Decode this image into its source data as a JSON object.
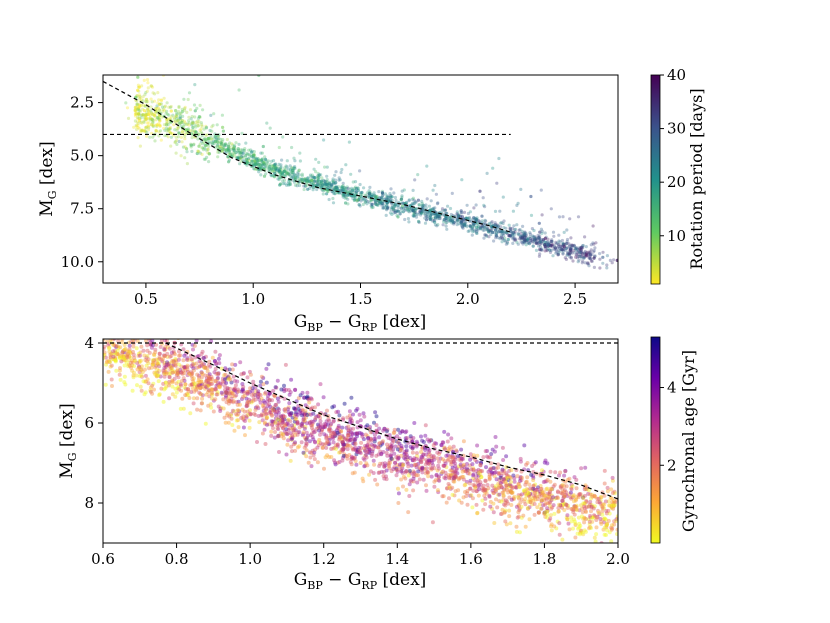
{
  "figure": {
    "description_panels": 2
  },
  "chart_data": [
    {
      "type": "scatter",
      "panel": "top",
      "xlabel": "G_BP − G_RP [dex]",
      "ylabel": "M_G [dex]",
      "xlim": [
        0.3,
        2.7
      ],
      "ylim": [
        11.0,
        1.2
      ],
      "y_inverted": true,
      "xticks": [
        0.5,
        1.0,
        1.5,
        2.0,
        2.5
      ],
      "xtick_labels": [
        "0.5",
        "1.0",
        "1.5",
        "2.0",
        "2.5"
      ],
      "yticks": [
        2.5,
        5.0,
        7.5,
        10.0
      ],
      "ytick_labels": [
        "2.5",
        "5.0",
        "7.5",
        "10.0"
      ],
      "colorbar": {
        "label": "Rotation period [days]",
        "range": [
          1,
          40
        ],
        "ticks": [
          10,
          20,
          30,
          40
        ],
        "tick_labels": [
          "10",
          "20",
          "30",
          "40"
        ],
        "colormap": "viridis_r",
        "colors": [
          "#fde725",
          "#5ec962",
          "#21918c",
          "#3b528b",
          "#440154"
        ]
      },
      "hline": {
        "y": 4.0,
        "x_range": [
          0.3,
          2.2
        ],
        "style": "dashed"
      },
      "reference_curve": {
        "style": "dashed",
        "x": [
          0.3,
          0.5,
          0.7,
          0.9,
          1.1,
          1.3,
          1.5,
          1.7,
          1.9,
          2.1,
          2.2
        ],
        "y": [
          1.5,
          2.6,
          3.9,
          5.1,
          5.9,
          6.5,
          6.9,
          7.3,
          7.8,
          8.3,
          8.6
        ]
      },
      "main_sequence_trend": {
        "x": [
          0.5,
          0.7,
          0.9,
          1.1,
          1.3,
          1.5,
          1.7,
          1.9,
          2.1,
          2.3,
          2.5,
          2.65
        ],
        "y": [
          3.0,
          3.8,
          4.8,
          5.7,
          6.3,
          6.9,
          7.4,
          7.9,
          8.4,
          9.0,
          9.5,
          9.9
        ],
        "period_days": [
          3,
          9,
          14,
          17,
          19,
          21,
          23,
          25,
          27,
          29,
          31,
          33
        ]
      }
    },
    {
      "type": "scatter",
      "panel": "bottom",
      "xlabel": "G_BP − G_RP [dex]",
      "ylabel": "M_G [dex]",
      "xlim": [
        0.6,
        2.0
      ],
      "ylim": [
        9.0,
        3.9
      ],
      "y_inverted": true,
      "xticks": [
        0.6,
        0.8,
        1.0,
        1.2,
        1.4,
        1.6,
        1.8,
        2.0
      ],
      "xtick_labels": [
        "0.6",
        "0.8",
        "1.0",
        "1.2",
        "1.4",
        "1.6",
        "1.8",
        "2.0"
      ],
      "yticks": [
        4,
        6,
        8
      ],
      "ytick_labels": [
        "4",
        "6",
        "8"
      ],
      "colorbar": {
        "label": "Gyrochronal age [Gyr]",
        "range": [
          0,
          5.3
        ],
        "ticks": [
          2,
          4
        ],
        "tick_labels": [
          "2",
          "4"
        ],
        "colormap": "plasma_r",
        "colors": [
          "#f0f921",
          "#fca636",
          "#e16462",
          "#b12a90",
          "#6a00a8",
          "#0d0887"
        ]
      },
      "hline": {
        "y": 4.0,
        "x_range": [
          0.6,
          2.0
        ],
        "style": "dashed"
      },
      "reference_curve": {
        "style": "dashed",
        "x": [
          0.77,
          0.9,
          1.0,
          1.1,
          1.2,
          1.3,
          1.4,
          1.5,
          1.6,
          1.7,
          1.8,
          1.9,
          2.0
        ],
        "y": [
          4.0,
          4.55,
          5.0,
          5.4,
          5.8,
          6.1,
          6.4,
          6.65,
          6.85,
          7.1,
          7.3,
          7.55,
          7.9
        ],
        "note": "dashed reference main sequence"
      },
      "main_sequence_trend": {
        "x": [
          0.6,
          0.7,
          0.8,
          0.9,
          1.0,
          1.1,
          1.2,
          1.3,
          1.4,
          1.5,
          1.6,
          1.7,
          1.8,
          1.9,
          2.0
        ],
        "y": [
          4.1,
          4.4,
          4.7,
          5.05,
          5.45,
          5.85,
          6.2,
          6.5,
          6.8,
          7.05,
          7.35,
          7.6,
          7.85,
          8.1,
          8.35
        ],
        "age_gyr": [
          1.0,
          1.3,
          1.6,
          2.0,
          2.5,
          2.8,
          3.0,
          3.0,
          2.9,
          2.6,
          2.3,
          2.0,
          1.6,
          1.3,
          1.0
        ]
      }
    }
  ]
}
